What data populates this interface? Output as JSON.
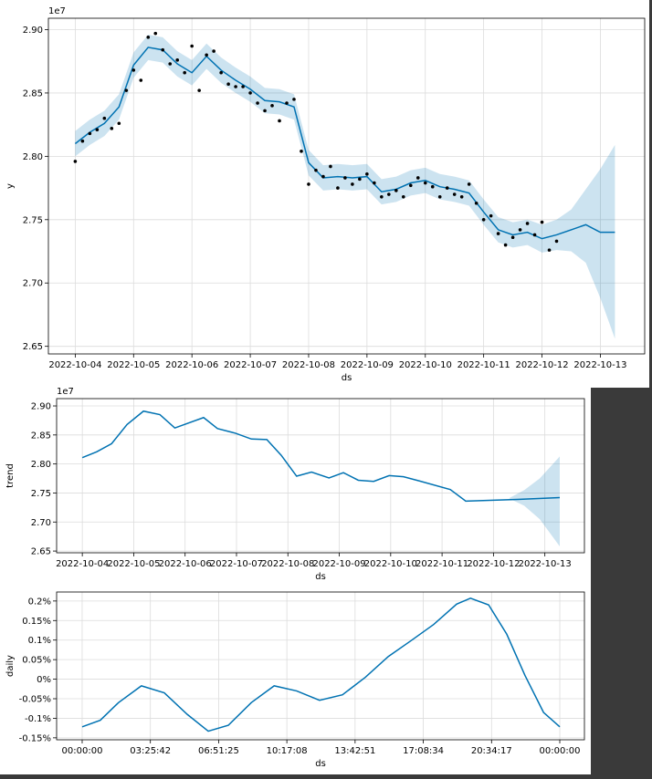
{
  "chart_data": [
    {
      "type": "line",
      "xlabel": "ds",
      "ylabel": "y",
      "y_offset_label": "1e7",
      "grid": true,
      "xlim": [
        -0.46,
        9.76
      ],
      "ylim": [
        2.644,
        2.909
      ],
      "xticks": [
        {
          "value": 0,
          "label": "2022-10-04"
        },
        {
          "value": 1,
          "label": "2022-10-05"
        },
        {
          "value": 2,
          "label": "2022-10-06"
        },
        {
          "value": 3,
          "label": "2022-10-07"
        },
        {
          "value": 4,
          "label": "2022-10-08"
        },
        {
          "value": 5,
          "label": "2022-10-09"
        },
        {
          "value": 6,
          "label": "2022-10-10"
        },
        {
          "value": 7,
          "label": "2022-10-11"
        },
        {
          "value": 8,
          "label": "2022-10-12"
        },
        {
          "value": 9,
          "label": "2022-10-13"
        }
      ],
      "yticks": [
        2.65,
        {
          "value": 2.7,
          "label": "2.70"
        },
        2.75,
        {
          "value": 2.8,
          "label": "2.80"
        },
        2.85,
        {
          "value": 2.9,
          "label": "2.90"
        }
      ],
      "band": {
        "color": "#0072B2",
        "x": [
          0,
          0.25,
          0.5,
          0.75,
          1,
          1.25,
          1.5,
          1.75,
          2,
          2.25,
          2.5,
          2.75,
          3,
          3.25,
          3.5,
          3.75,
          4,
          4.25,
          4.5,
          4.75,
          5,
          5.25,
          5.5,
          5.75,
          6,
          6.25,
          6.5,
          6.75,
          7,
          7.25,
          7.5,
          7.75,
          8,
          8.25,
          8.5,
          8.75,
          9,
          9.25
        ],
        "upper": [
          2.82,
          2.829,
          2.836,
          2.849,
          2.882,
          2.896,
          2.894,
          2.883,
          2.876,
          2.889,
          2.878,
          2.87,
          2.863,
          2.854,
          2.853,
          2.849,
          2.805,
          2.793,
          2.794,
          2.793,
          2.794,
          2.782,
          2.784,
          2.789,
          2.791,
          2.786,
          2.784,
          2.781,
          2.766,
          2.752,
          2.748,
          2.75,
          2.746,
          2.75,
          2.758,
          2.774,
          2.79,
          2.809
        ],
        "lower": [
          2.8,
          2.809,
          2.816,
          2.829,
          2.862,
          2.876,
          2.874,
          2.863,
          2.856,
          2.869,
          2.858,
          2.85,
          2.843,
          2.834,
          2.833,
          2.829,
          2.785,
          2.773,
          2.774,
          2.773,
          2.774,
          2.762,
          2.764,
          2.769,
          2.771,
          2.766,
          2.764,
          2.761,
          2.746,
          2.732,
          2.728,
          2.73,
          2.724,
          2.726,
          2.725,
          2.716,
          2.688,
          2.656
        ]
      },
      "line": {
        "color": "#0072B2",
        "x": [
          0,
          0.25,
          0.5,
          0.75,
          1,
          1.25,
          1.5,
          1.75,
          2,
          2.25,
          2.5,
          2.75,
          3,
          3.25,
          3.5,
          3.75,
          4,
          4.25,
          4.5,
          4.75,
          5,
          5.25,
          5.5,
          5.75,
          6,
          6.25,
          6.5,
          6.75,
          7,
          7.25,
          7.5,
          7.75,
          8,
          8.25,
          8.5,
          8.75,
          9,
          9.25
        ],
        "values": [
          2.81,
          2.819,
          2.826,
          2.839,
          2.872,
          2.886,
          2.884,
          2.873,
          2.866,
          2.879,
          2.868,
          2.86,
          2.853,
          2.844,
          2.843,
          2.839,
          2.795,
          2.783,
          2.784,
          2.783,
          2.784,
          2.772,
          2.774,
          2.779,
          2.781,
          2.776,
          2.774,
          2.771,
          2.756,
          2.742,
          2.738,
          2.74,
          2.735,
          2.738,
          2.742,
          2.746,
          2.74,
          2.74
        ]
      },
      "points": {
        "color": "#000000",
        "x": [
          0,
          0.125,
          0.25,
          0.375,
          0.5,
          0.625,
          0.75,
          0.875,
          1,
          1.125,
          1.25,
          1.375,
          1.5,
          1.625,
          1.75,
          1.875,
          2,
          2.125,
          2.25,
          2.375,
          2.5,
          2.625,
          2.75,
          2.875,
          3,
          3.125,
          3.25,
          3.375,
          3.5,
          3.625,
          3.75,
          3.875,
          4,
          4.125,
          4.25,
          4.375,
          4.5,
          4.625,
          4.75,
          4.875,
          5,
          5.125,
          5.25,
          5.375,
          5.5,
          5.625,
          5.75,
          5.875,
          6,
          6.125,
          6.25,
          6.375,
          6.5,
          6.625,
          6.75,
          6.875,
          7,
          7.125,
          7.25,
          7.375,
          7.5,
          7.625,
          7.75,
          7.875,
          8,
          8.125,
          8.25
        ],
        "values": [
          2.796,
          2.812,
          2.818,
          2.821,
          2.83,
          2.822,
          2.826,
          2.852,
          2.868,
          2.86,
          2.894,
          2.897,
          2.884,
          2.873,
          2.876,
          2.866,
          2.887,
          2.852,
          2.88,
          2.883,
          2.866,
          2.857,
          2.855,
          2.855,
          2.85,
          2.842,
          2.836,
          2.84,
          2.828,
          2.842,
          2.845,
          2.804,
          2.778,
          2.789,
          2.784,
          2.792,
          2.775,
          2.783,
          2.778,
          2.782,
          2.786,
          2.779,
          2.768,
          2.77,
          2.773,
          2.768,
          2.777,
          2.783,
          2.779,
          2.776,
          2.768,
          2.775,
          2.77,
          2.768,
          2.778,
          2.763,
          2.75,
          2.753,
          2.739,
          2.73,
          2.736,
          2.742,
          2.747,
          2.738,
          2.748,
          2.726,
          2.733
        ]
      }
    },
    {
      "type": "line",
      "xlabel": "ds",
      "ylabel": "trend",
      "y_offset_label": "1e7",
      "grid": true,
      "xlim": [
        -0.5,
        9.77
      ],
      "ylim": [
        2.647,
        2.9126
      ],
      "xticks": [
        {
          "value": 0,
          "label": "2022-10-04"
        },
        {
          "value": 1,
          "label": "2022-10-05"
        },
        {
          "value": 2,
          "label": "2022-10-06"
        },
        {
          "value": 3,
          "label": "2022-10-07"
        },
        {
          "value": 4,
          "label": "2022-10-08"
        },
        {
          "value": 5,
          "label": "2022-10-09"
        },
        {
          "value": 6,
          "label": "2022-10-10"
        },
        {
          "value": 7,
          "label": "2022-10-11"
        },
        {
          "value": 8,
          "label": "2022-10-12"
        },
        {
          "value": 9,
          "label": "2022-10-13"
        }
      ],
      "yticks": [
        2.65,
        {
          "value": 2.7,
          "label": "2.70"
        },
        2.75,
        {
          "value": 2.8,
          "label": "2.80"
        },
        2.85,
        {
          "value": 2.9,
          "label": "2.90"
        }
      ],
      "band": {
        "color": "#0072B2",
        "x": [
          8.3,
          8.6,
          8.9,
          9.29
        ],
        "upper": [
          2.741,
          2.755,
          2.775,
          2.813
        ],
        "lower": [
          2.741,
          2.728,
          2.705,
          2.658
        ]
      },
      "line": {
        "color": "#0072B2",
        "x": [
          0,
          0.28,
          0.57,
          0.87,
          1.19,
          1.51,
          1.8,
          2.36,
          2.63,
          2.98,
          3.29,
          3.59,
          3.87,
          4.17,
          4.46,
          4.8,
          5.08,
          5.37,
          5.67,
          5.97,
          6.25,
          6.55,
          7.16,
          7.46,
          8.47,
          9.29
        ],
        "values": [
          2.811,
          2.821,
          2.835,
          2.868,
          2.891,
          2.885,
          2.862,
          2.88,
          2.861,
          2.853,
          2.843,
          2.842,
          2.815,
          2.779,
          2.786,
          2.776,
          2.785,
          2.772,
          2.77,
          2.78,
          2.778,
          2.771,
          2.756,
          2.736,
          2.739,
          2.742
        ]
      }
    },
    {
      "type": "line",
      "xlabel": "ds",
      "ylabel": "daily",
      "grid": true,
      "xlim": [
        -0.0535,
        1.0516
      ],
      "ylim": [
        -0.155,
        0.223
      ],
      "xticks": [
        {
          "value": 0,
          "label": "00:00:00"
        },
        {
          "value": 0.142857,
          "label": "03:25:42"
        },
        {
          "value": 0.285714,
          "label": "06:51:25"
        },
        {
          "value": 0.428571,
          "label": "10:17:08"
        },
        {
          "value": 0.571429,
          "label": "13:42:51"
        },
        {
          "value": 0.714286,
          "label": "17:08:34"
        },
        {
          "value": 0.857143,
          "label": "20:34:17"
        },
        {
          "value": 1,
          "label": "00:00:00"
        }
      ],
      "yticks": [
        {
          "value": -0.15,
          "label": "-0.15%"
        },
        {
          "value": -0.1,
          "label": "-0.1%"
        },
        {
          "value": -0.05,
          "label": "-0.05%"
        },
        {
          "value": 0,
          "label": "0%"
        },
        {
          "value": 0.05,
          "label": "0.05%"
        },
        {
          "value": 0.1,
          "label": "0.1%"
        },
        {
          "value": 0.15,
          "label": "0.15%"
        },
        {
          "value": 0.2,
          "label": "0.2%"
        }
      ],
      "line": {
        "color": "#0072B2",
        "x": [
          0,
          0.038,
          0.076,
          0.124,
          0.172,
          0.22,
          0.264,
          0.306,
          0.354,
          0.402,
          0.449,
          0.497,
          0.545,
          0.593,
          0.641,
          0.688,
          0.736,
          0.784,
          0.813,
          0.851,
          0.889,
          0.927,
          0.966,
          1
        ],
        "values": [
          -0.122,
          -0.105,
          -0.06,
          -0.017,
          -0.035,
          -0.09,
          -0.133,
          -0.118,
          -0.06,
          -0.017,
          -0.03,
          -0.054,
          -0.04,
          0.005,
          0.058,
          0.098,
          0.14,
          0.192,
          0.207,
          0.19,
          0.115,
          0.01,
          -0.085,
          -0.122
        ]
      }
    }
  ]
}
